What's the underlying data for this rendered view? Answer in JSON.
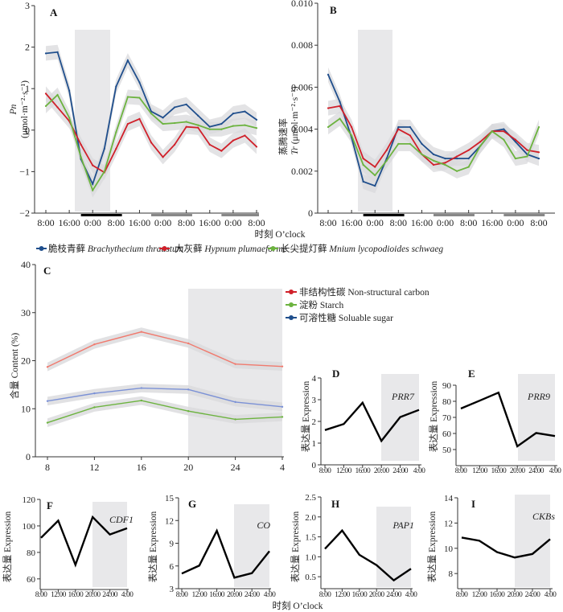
{
  "chart_data": [
    {
      "id": "A",
      "type": "line",
      "panel_label": "A",
      "ylabel_symbol": "Pn",
      "ylabel_unit": "(μmol·m⁻²·s⁻¹)",
      "ylim": [
        -2,
        3
      ],
      "yticks": [
        "3",
        "2",
        "1",
        "0",
        "−1",
        "−2"
      ],
      "ytick_values": [
        3,
        2,
        1,
        0,
        -1,
        -2
      ],
      "hours": [
        0,
        4,
        8,
        12,
        16,
        20,
        24,
        28,
        32,
        36,
        40,
        44,
        48,
        52,
        56,
        60,
        64,
        68,
        72
      ],
      "xtick_labels": [
        "8:00",
        "16:00",
        "0:00",
        "8:00",
        "16:00",
        "0:00",
        "8:00",
        "16:00",
        "0:00",
        "8:00"
      ],
      "xtick_hours": [
        0,
        8,
        16,
        24,
        32,
        40,
        48,
        56,
        64,
        72
      ],
      "shade_hours": [
        12,
        26
      ],
      "night_bars": [
        {
          "from": 12,
          "to": 26,
          "color": "#000000"
        },
        {
          "from": 36,
          "to": 50,
          "color": "#888888"
        },
        {
          "from": 60,
          "to": 74,
          "color": "#888888"
        }
      ],
      "series": [
        {
          "name": "脆枝青藓 Brachythecium thraustum",
          "color": "#1f4e8c",
          "values": [
            1.85,
            1.88,
            0.95,
            -0.7,
            -1.3,
            -0.45,
            1.05,
            1.68,
            1.15,
            0.45,
            0.3,
            0.55,
            0.62,
            0.35,
            0.08,
            0.15,
            0.4,
            0.45,
            0.25
          ]
        },
        {
          "name": "大灰藓 Hypnum plumaeforme",
          "color": "#d0202a",
          "values": [
            0.88,
            0.55,
            0.22,
            -0.35,
            -0.85,
            -1.02,
            -0.45,
            0.15,
            0.27,
            -0.3,
            -0.65,
            -0.35,
            0.08,
            0.06,
            -0.35,
            -0.5,
            -0.25,
            -0.13,
            -0.4
          ]
        },
        {
          "name": "长尖提灯藓 Mnium lycopodioides schwaeg",
          "color": "#6cb33f",
          "values": [
            0.58,
            0.85,
            0.3,
            -0.65,
            -1.45,
            -1.0,
            -0.05,
            0.8,
            0.78,
            0.4,
            0.15,
            0.17,
            0.2,
            0.12,
            0.02,
            0.02,
            0.1,
            0.12,
            0.05
          ]
        }
      ]
    },
    {
      "id": "B",
      "type": "line",
      "panel_label": "B",
      "ylabel_cn": "蒸腾速率",
      "ylabel_symbol": "Tr",
      "ylabel_unit": "(μmol·m⁻²·s⁻¹)",
      "ylim": [
        0,
        0.01
      ],
      "yticks": [
        "0.010",
        "0.008",
        "0.006",
        "0.004",
        "0.002",
        "0"
      ],
      "ytick_values": [
        0.01,
        0.008,
        0.006,
        0.004,
        0.002,
        0
      ],
      "hours": [
        0,
        4,
        8,
        12,
        16,
        20,
        24,
        28,
        32,
        36,
        40,
        44,
        48,
        52,
        56,
        60,
        64,
        68,
        72
      ],
      "xtick_labels": [
        "8:00",
        "16:00",
        "0:00",
        "8:00",
        "16:00",
        "0:00",
        "8:00",
        "16:00",
        "0:00",
        "8:00"
      ],
      "xtick_hours": [
        0,
        8,
        16,
        24,
        32,
        40,
        48,
        56,
        64,
        72
      ],
      "shade_hours": [
        12,
        26
      ],
      "night_bars": [
        {
          "from": 12,
          "to": 26,
          "color": "#000000"
        },
        {
          "from": 36,
          "to": 50,
          "color": "#888888"
        },
        {
          "from": 60,
          "to": 74,
          "color": "#888888"
        }
      ],
      "series": [
        {
          "name": "脆枝青藓 Brachythecium thraustum",
          "color": "#1f4e8c",
          "values": [
            0.0066,
            0.0053,
            0.0036,
            0.0015,
            0.0013,
            0.0026,
            0.0041,
            0.0041,
            0.0033,
            0.0028,
            0.0026,
            0.0026,
            0.0026,
            0.0032,
            0.0039,
            0.004,
            0.0034,
            0.0028,
            0.0026
          ]
        },
        {
          "name": "大灰藓 Hypnum plumaeforme",
          "color": "#d0202a",
          "values": [
            0.005,
            0.0051,
            0.0041,
            0.0026,
            0.0022,
            0.003,
            0.004,
            0.0037,
            0.0028,
            0.0023,
            0.0024,
            0.0027,
            0.003,
            0.0034,
            0.0039,
            0.0039,
            0.0035,
            0.003,
            0.0029
          ]
        },
        {
          "name": "长尖提灯藓 Mnium lycopodioides schwaeg",
          "color": "#6cb33f",
          "values": [
            0.0041,
            0.0045,
            0.0037,
            0.0023,
            0.0018,
            0.0025,
            0.0033,
            0.0033,
            0.0028,
            0.0025,
            0.0023,
            0.002,
            0.0022,
            0.0032,
            0.0039,
            0.0035,
            0.0026,
            0.0027,
            0.0041
          ]
        }
      ]
    },
    {
      "id": "C",
      "type": "line",
      "panel_label": "C",
      "ylabel": "含量 Content (%)",
      "ylim": [
        0,
        40
      ],
      "yticks": [
        "40",
        "30",
        "20",
        "10",
        "0"
      ],
      "ytick_values": [
        40,
        30,
        20,
        10,
        0
      ],
      "categories": [
        "8",
        "12",
        "16",
        "20",
        "24",
        "4"
      ],
      "shade_from_index": 3,
      "series": [
        {
          "name": "非结构性碳 Non-structural carbon",
          "color": "#f07a6e",
          "legend_color": "#d0202a",
          "values": [
            18.7,
            23.4,
            26.0,
            23.6,
            19.3,
            18.8
          ]
        },
        {
          "name": "淀粉 Starch",
          "color": "#6cb33f",
          "legend_color": "#6cb33f",
          "values": [
            7.1,
            10.3,
            11.7,
            9.5,
            7.8,
            8.3
          ]
        },
        {
          "name": "可溶性糖 Soluable sugar",
          "color": "#7b91d6",
          "legend_color": "#1f4e8c",
          "values": [
            11.6,
            13.2,
            14.3,
            14.0,
            11.4,
            10.4
          ]
        }
      ]
    },
    {
      "id": "D",
      "type": "line",
      "panel_label": "D",
      "gene": "PRR7",
      "ylabel": "表达量 Expression",
      "ylim": [
        0,
        4
      ],
      "yticks": [
        "4",
        "3",
        "2",
        "1",
        "0"
      ],
      "ytick_values": [
        4,
        3,
        2,
        1,
        0
      ],
      "categories": [
        "8:00",
        "12:00",
        "16:00",
        "20:00",
        "24:00",
        "4:00"
      ],
      "values": [
        1.6,
        1.88,
        2.86,
        1.1,
        2.2,
        2.53
      ]
    },
    {
      "id": "E",
      "type": "line",
      "panel_label": "E",
      "gene": "PRR9",
      "ylabel": "表达量 Expression",
      "ylim": [
        40,
        90
      ],
      "yticks": [
        "90",
        "80",
        "70",
        "60",
        "50"
      ],
      "ytick_values": [
        90,
        80,
        70,
        60,
        50
      ],
      "categories": [
        "8:00",
        "12:00",
        "16:00",
        "20:00",
        "24:00",
        "4:00"
      ],
      "values": [
        75.5,
        80.4,
        85.4,
        52.0,
        60.3,
        58.4
      ]
    },
    {
      "id": "F",
      "type": "line",
      "panel_label": "F",
      "gene": "CDF1",
      "ylabel": "表达量 Expression",
      "ylim": [
        52,
        120
      ],
      "yticks": [
        "120",
        "100",
        "80",
        "60"
      ],
      "ytick_values": [
        120,
        100,
        80,
        60
      ],
      "categories": [
        "8:00",
        "12:00",
        "16:00",
        "20:00",
        "24:00",
        "4:00"
      ],
      "values": [
        91,
        104,
        70.6,
        106.7,
        93.5,
        98.2
      ]
    },
    {
      "id": "G",
      "type": "line",
      "panel_label": "G",
      "gene": "CO",
      "ylabel": "表达量 Expression",
      "ylim": [
        3,
        15
      ],
      "yticks": [
        "15",
        "12",
        "9",
        "6",
        "3"
      ],
      "ytick_values": [
        15,
        12,
        9,
        6,
        3
      ],
      "categories": [
        "8:00",
        "12:00",
        "16:00",
        "20:00",
        "24:00",
        "4:00"
      ],
      "values": [
        5.0,
        6.05,
        10.65,
        4.45,
        5.05,
        7.95
      ]
    },
    {
      "id": "H",
      "type": "line",
      "panel_label": "H",
      "gene": "PAP1",
      "ylabel": "表达量 Expression",
      "ylim": [
        0.2,
        2.5
      ],
      "yticks": [
        "2.5",
        "2.0",
        "1.5",
        "1.0",
        "0.5"
      ],
      "ytick_values": [
        2.5,
        2.0,
        1.5,
        1.0,
        0.5
      ],
      "categories": [
        "8:00",
        "12:00",
        "16:00",
        "20:00",
        "24:00",
        "4:00"
      ],
      "values": [
        1.2,
        1.66,
        1.05,
        0.79,
        0.41,
        0.7
      ]
    },
    {
      "id": "I",
      "type": "line",
      "panel_label": "I",
      "gene": "CKBs",
      "ylabel": "表达量 Expression",
      "ylim": [
        6.8,
        14
      ],
      "yticks": [
        "14",
        "12",
        "10",
        "8"
      ],
      "ytick_values": [
        14,
        12,
        10,
        8
      ],
      "categories": [
        "8:00",
        "12:00",
        "16:00",
        "20:00",
        "24:00",
        "4:00"
      ],
      "values": [
        10.85,
        10.6,
        9.7,
        9.27,
        9.55,
        10.72
      ]
    }
  ],
  "labels": {
    "xlabel_top": "时刻 O’clock",
    "xlabel_bottom": "时刻 O’clock",
    "legend_top": [
      {
        "cn": "脆枝青藓",
        "latin": "Brachythecium thraustum",
        "color": "#1f4e8c"
      },
      {
        "cn": "大灰藓",
        "latin": "Hypnum plumaeforme",
        "color": "#d0202a"
      },
      {
        "cn": "长尖提灯藓",
        "latin": "Mnium lycopodioides schwaeg",
        "color": "#6cb33f"
      }
    ],
    "legend_c": [
      {
        "text": "非结构性碳 Non-structural carbon",
        "color": "#d0202a"
      },
      {
        "text": "淀粉 Starch",
        "color": "#6cb33f"
      },
      {
        "text": "可溶性糖 Soluable sugar",
        "color": "#1f4e8c"
      }
    ]
  },
  "colors": {
    "shade": "#e8e8ea",
    "ribbon": "#d9d9dc",
    "axis": "#333333",
    "expression_line": "#000000"
  }
}
